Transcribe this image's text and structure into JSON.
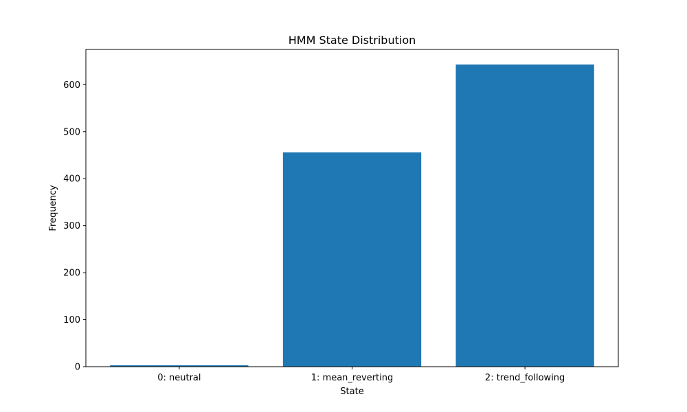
{
  "chart_data": {
    "type": "bar",
    "title": "HMM State Distribution",
    "xlabel": "State",
    "ylabel": "Frequency",
    "categories": [
      "0: neutral",
      "1: mean_reverting",
      "2: trend_following"
    ],
    "values": [
      3,
      456,
      643
    ],
    "ylim": [
      0,
      675
    ],
    "yticks": [
      0,
      100,
      200,
      300,
      400,
      500,
      600
    ],
    "grid": false,
    "bar_color": "#1f77b4"
  }
}
